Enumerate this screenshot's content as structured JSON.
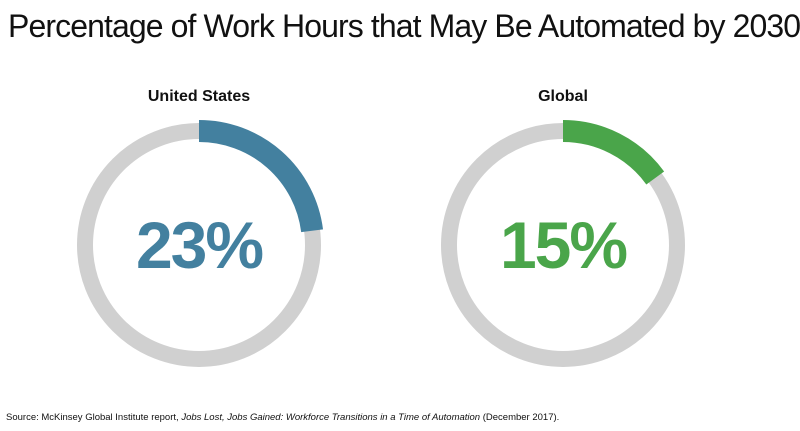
{
  "title": "Percentage of Work Hours that May Be Automated by 2030",
  "chart_data": [
    {
      "type": "pie",
      "title": "United States",
      "value": 23,
      "value_label": "23%",
      "total": 100,
      "color": "#43809F",
      "track_color": "#D0D0D0"
    },
    {
      "type": "pie",
      "title": "Global",
      "value": 15,
      "value_label": "15%",
      "total": 100,
      "color": "#4AA54A",
      "track_color": "#D0D0D0"
    }
  ],
  "source": {
    "prefix": "Source: McKinsey Global Institute report, ",
    "italic": "Jobs Lost, Jobs Gained: Workforce Transitions in a Time of Automation",
    "suffix": " (December 2017)."
  }
}
